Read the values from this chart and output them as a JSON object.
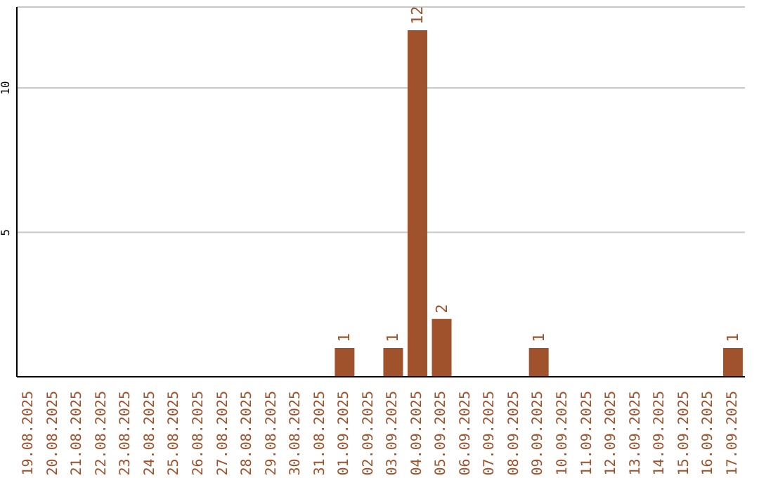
{
  "chart_data": {
    "type": "bar",
    "categories": [
      "19.08.2025",
      "20.08.2025",
      "21.08.2025",
      "22.08.2025",
      "23.08.2025",
      "24.08.2025",
      "25.08.2025",
      "26.08.2025",
      "27.08.2025",
      "28.08.2025",
      "29.08.2025",
      "30.08.2025",
      "31.08.2025",
      "01.09.2025",
      "02.09.2025",
      "03.09.2025",
      "04.09.2025",
      "05.09.2025",
      "06.09.2025",
      "07.09.2025",
      "08.09.2025",
      "09.09.2025",
      "10.09.2025",
      "11.09.2025",
      "12.09.2025",
      "13.09.2025",
      "14.09.2025",
      "15.09.2025",
      "16.09.2025",
      "17.09.2025"
    ],
    "values": [
      0,
      0,
      0,
      0,
      0,
      0,
      0,
      0,
      0,
      0,
      0,
      0,
      0,
      1,
      0,
      1,
      12,
      2,
      0,
      0,
      0,
      1,
      0,
      0,
      0,
      0,
      0,
      0,
      0,
      1
    ],
    "value_labels": [
      null,
      null,
      null,
      null,
      null,
      null,
      null,
      null,
      null,
      null,
      null,
      null,
      null,
      "1",
      null,
      "1",
      "12",
      "2",
      null,
      null,
      null,
      "1",
      null,
      null,
      null,
      null,
      null,
      null,
      null,
      "1"
    ],
    "color": "#a0522d",
    "ylim": [
      0,
      12.8
    ],
    "yticks": [
      5,
      10
    ],
    "grid": "y",
    "legend": false
  }
}
